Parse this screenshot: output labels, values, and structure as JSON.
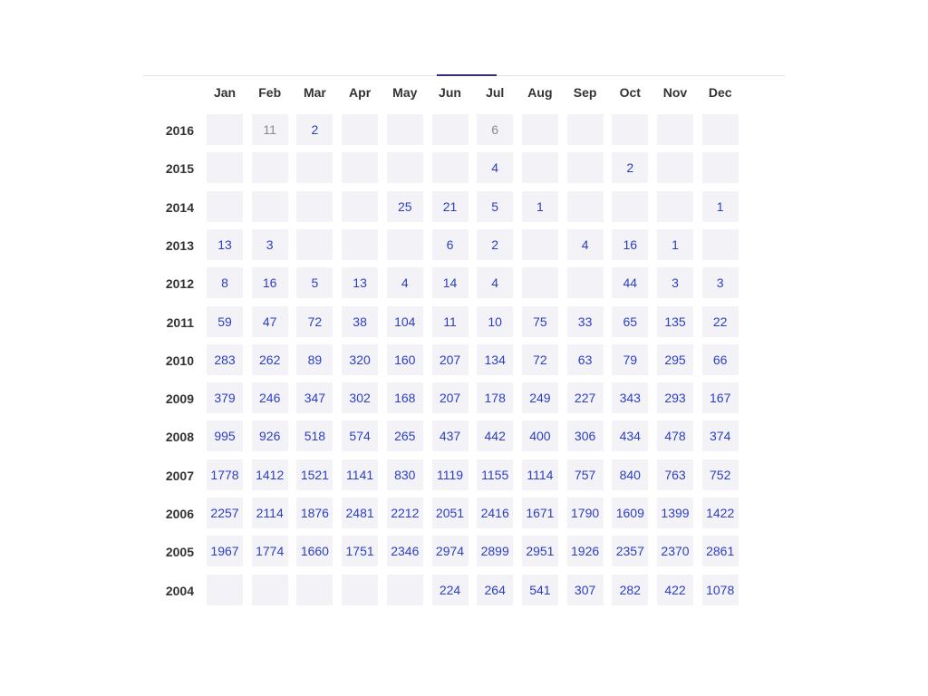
{
  "months": [
    "Jan",
    "Feb",
    "Mar",
    "Apr",
    "May",
    "Jun",
    "Jul",
    "Aug",
    "Sep",
    "Oct",
    "Nov",
    "Dec"
  ],
  "muted_color": "#8a8a8a",
  "link_color": "#2c3ec2",
  "rows": [
    {
      "year": "2016",
      "values": [
        "",
        "11",
        "2",
        "",
        "",
        "",
        "6",
        "",
        "",
        "",
        "",
        ""
      ],
      "muted": [
        false,
        true,
        false,
        false,
        false,
        false,
        true,
        false,
        false,
        false,
        false,
        false
      ]
    },
    {
      "year": "2015",
      "values": [
        "",
        "",
        "",
        "",
        "",
        "",
        "4",
        "",
        "",
        "2",
        "",
        ""
      ]
    },
    {
      "year": "2014",
      "values": [
        "",
        "",
        "",
        "",
        "25",
        "21",
        "5",
        "1",
        "",
        "",
        "",
        "1"
      ]
    },
    {
      "year": "2013",
      "values": [
        "13",
        "3",
        "",
        "",
        "",
        "6",
        "2",
        "",
        "4",
        "16",
        "1",
        ""
      ]
    },
    {
      "year": "2012",
      "values": [
        "8",
        "16",
        "5",
        "13",
        "4",
        "14",
        "4",
        "",
        "",
        "44",
        "3",
        "3"
      ]
    },
    {
      "year": "2011",
      "values": [
        "59",
        "47",
        "72",
        "38",
        "104",
        "11",
        "10",
        "75",
        "33",
        "65",
        "135",
        "22"
      ]
    },
    {
      "year": "2010",
      "values": [
        "283",
        "262",
        "89",
        "320",
        "160",
        "207",
        "134",
        "72",
        "63",
        "79",
        "295",
        "66"
      ]
    },
    {
      "year": "2009",
      "values": [
        "379",
        "246",
        "347",
        "302",
        "168",
        "207",
        "178",
        "249",
        "227",
        "343",
        "293",
        "167"
      ]
    },
    {
      "year": "2008",
      "values": [
        "995",
        "926",
        "518",
        "574",
        "265",
        "437",
        "442",
        "400",
        "306",
        "434",
        "478",
        "374"
      ]
    },
    {
      "year": "2007",
      "values": [
        "1778",
        "1412",
        "1521",
        "1141",
        "830",
        "1119",
        "1155",
        "1114",
        "757",
        "840",
        "763",
        "752"
      ]
    },
    {
      "year": "2006",
      "values": [
        "2257",
        "2114",
        "1876",
        "2481",
        "2212",
        "2051",
        "2416",
        "1671",
        "1790",
        "1609",
        "1399",
        "1422"
      ]
    },
    {
      "year": "2005",
      "values": [
        "1967",
        "1774",
        "1660",
        "1751",
        "2346",
        "2974",
        "2899",
        "2951",
        "1926",
        "2357",
        "2370",
        "2861"
      ]
    },
    {
      "year": "2004",
      "values": [
        "",
        "",
        "",
        "",
        "",
        "224",
        "264",
        "541",
        "307",
        "282",
        "422",
        "1078"
      ]
    }
  ]
}
